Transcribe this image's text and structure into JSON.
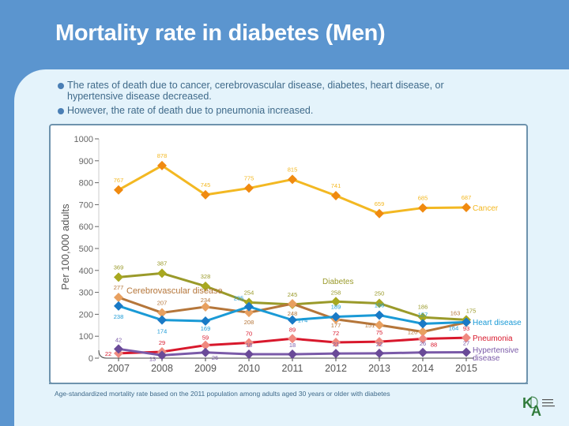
{
  "slide": {
    "title": "Mortality rate in diabetes (Men)",
    "bullets": [
      "The rates of death due to cancer, cerebrovascular disease, diabetes, heart disease, or hypertensive disease decreased.",
      "However, the rate of death due to pneumonia increased."
    ],
    "footnote": "Age-standardized mortality rate based on the 2011 population among adults aged 30 years or older with diabetes",
    "logo_text": "KDA Korean Diabetes Association",
    "colors": {
      "header": "#5b95cf",
      "background": "#e4f3fb"
    }
  },
  "chart_data": {
    "type": "line",
    "ylabel": "Per 100,000 adults",
    "xlabel": "",
    "x": [
      2007,
      2008,
      2009,
      2010,
      2011,
      2012,
      2013,
      2014,
      2015
    ],
    "ylim": [
      0,
      1000
    ],
    "yticks": [
      0,
      100,
      200,
      300,
      400,
      500,
      600,
      700,
      800,
      900,
      1000
    ],
    "grid": false,
    "series": [
      {
        "name": "Cancer",
        "color": "#f3b822",
        "marker_color": "#f08a10",
        "values": [
          767,
          878,
          745,
          775,
          815,
          741,
          659,
          685,
          687
        ]
      },
      {
        "name": "Diabetes",
        "color": "#9a9a2a",
        "marker_color": "#a8a820",
        "values": [
          369,
          387,
          328,
          254,
          245,
          258,
          250,
          186,
          175
        ]
      },
      {
        "name": "Cerebrovascular disease",
        "color": "#b5763a",
        "marker_color": "#e8a060",
        "values": [
          277,
          207,
          234,
          208,
          248,
          177,
          151,
          120,
          163
        ]
      },
      {
        "name": "Heart disease",
        "color": "#1a9ad6",
        "marker_color": "#1a7ac6",
        "values": [
          238,
          174,
          169,
          235,
          174,
          189,
          196,
          157,
          164
        ]
      },
      {
        "name": "Pneumonia",
        "color": "#d8182c",
        "marker_color": "#f08a80",
        "values": [
          22,
          29,
          59,
          70,
          89,
          72,
          75,
          88,
          93
        ]
      },
      {
        "name": "Hypertensive disease",
        "color": "#7a5aa8",
        "marker_color": "#6a4a98",
        "values": [
          42,
          13,
          26,
          18,
          18,
          21,
          22,
          26,
          27
        ]
      }
    ]
  }
}
